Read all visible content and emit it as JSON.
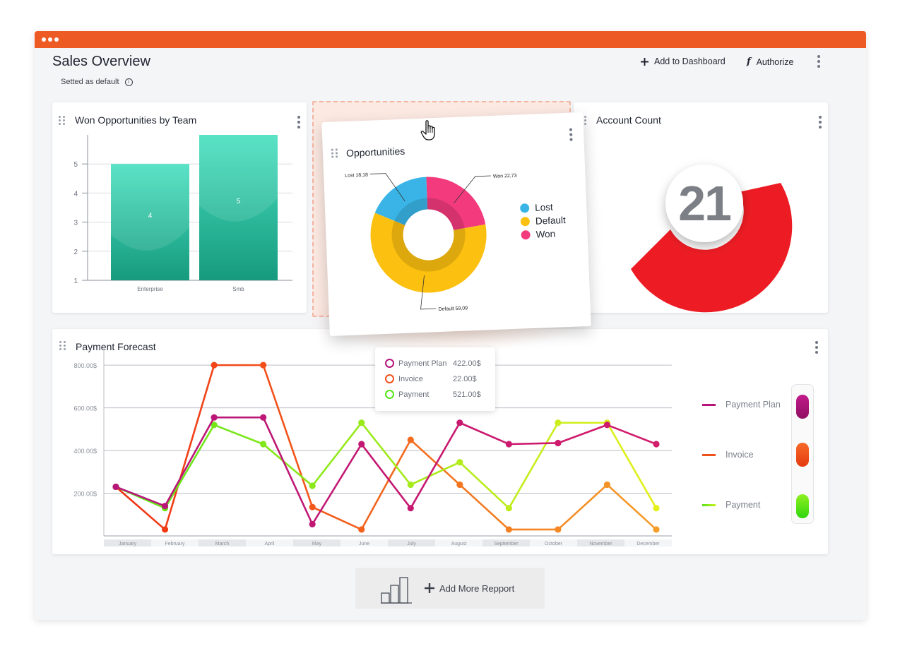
{
  "window": {
    "accent": "#ee5a24"
  },
  "header": {
    "title": "Sales Overview",
    "subtitle": "Setted as default",
    "add_dashboard_label": "Add to Dashboard",
    "authorize_label": "Authorize"
  },
  "won_card": {
    "title": "Won Opportunities by Team"
  },
  "opp_card": {
    "title": "Opportunities",
    "legend": [
      {
        "label": "Lost",
        "color": "#3ab4e6"
      },
      {
        "label": "Default",
        "color": "#fcc010"
      },
      {
        "label": "Won",
        "color": "#f23a7d"
      }
    ]
  },
  "account_card": {
    "title": "Account Count",
    "count": "21"
  },
  "payment_card": {
    "title": "Payment Forecast",
    "tooltip": [
      {
        "label": "Payment Plan",
        "value": "422.00$",
        "color": "#b5157a"
      },
      {
        "label": "Invoice",
        "value": "22.00$",
        "color": "#f0521e"
      },
      {
        "label": "Payment",
        "value": "521.00$",
        "color": "#58e41a"
      }
    ],
    "legend": [
      {
        "label": "Payment Plan",
        "color": "#b5157a"
      },
      {
        "label": "Invoice",
        "color": "#f0521e"
      },
      {
        "label": "Payment",
        "color": "#58e41a"
      }
    ]
  },
  "add_more": {
    "label": "Add More Repport"
  },
  "chart_data": [
    {
      "type": "bar",
      "title": "Won Opportunities by Team",
      "categories": [
        "Enterprise",
        "Smb"
      ],
      "values": [
        4,
        5
      ],
      "data_labels": [
        "4",
        "5"
      ],
      "y_ticks": [
        "1",
        "2",
        "3",
        "4",
        "5"
      ],
      "ylim": [
        1,
        6
      ],
      "color": "#2bb89a",
      "grid": true
    },
    {
      "type": "pie",
      "title": "Opportunities",
      "labels": [
        "Lost",
        "Default",
        "Won"
      ],
      "values": [
        18.18,
        59.09,
        22.73
      ],
      "slice_labels": [
        "Lost 18,18",
        "Default 59,09",
        "Won 22,73"
      ],
      "colors": [
        "#3ab4e6",
        "#fcc010",
        "#f23a7d"
      ],
      "legend": "right"
    },
    {
      "type": "line",
      "title": "Payment Forecast",
      "categories": [
        "January",
        "February",
        "March",
        "April",
        "May",
        "June",
        "July",
        "August",
        "September",
        "October",
        "November",
        "December"
      ],
      "y_ticks": [
        "200.00$",
        "400.00$",
        "600.00$",
        "800.00$"
      ],
      "ylim": [
        0,
        850
      ],
      "grid": true,
      "legend": "right",
      "series": [
        {
          "name": "Payment Plan",
          "color": "#b5157a",
          "values": [
            230,
            140,
            555,
            555,
            55,
            430,
            130,
            530,
            430,
            435,
            520,
            430
          ]
        },
        {
          "name": "Invoice",
          "color": "#f0521e",
          "values": [
            230,
            30,
            800,
            800,
            135,
            30,
            450,
            240,
            30,
            30,
            240,
            30
          ]
        },
        {
          "name": "Payment",
          "color": "#58e41a",
          "values": [
            230,
            130,
            520,
            430,
            235,
            530,
            240,
            345,
            130,
            530,
            530,
            130
          ]
        }
      ]
    }
  ]
}
